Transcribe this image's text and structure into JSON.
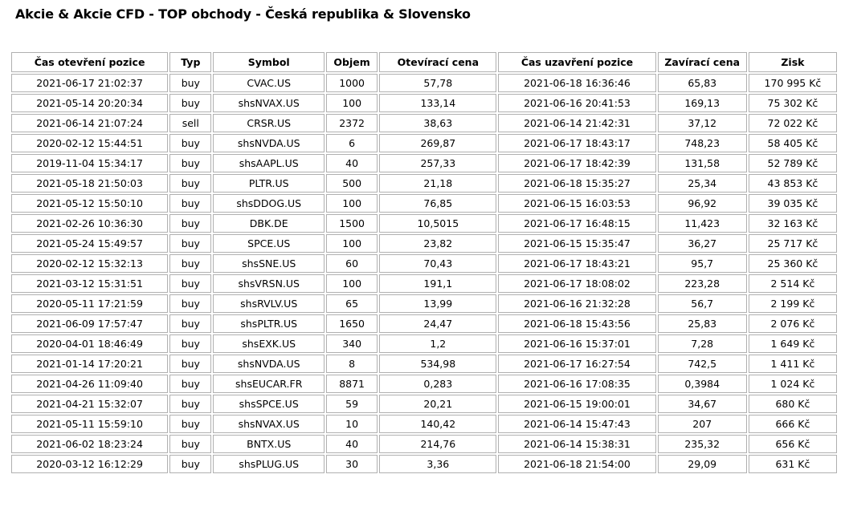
{
  "title": "Akcie & Akcie CFD - TOP obchody - Česká republika & Slovensko",
  "table": {
    "headers": [
      "Čas otevření pozice",
      "Typ",
      "Symbol",
      "Objem",
      "Otevírací cena",
      "Čas uzavření pozice",
      "Zavírací cena",
      "Zisk"
    ],
    "rows": [
      [
        "2021-06-17 21:02:37",
        "buy",
        "CVAC.US",
        "1000",
        "57,78",
        "2021-06-18 16:36:46",
        "65,83",
        "170 995 Kč"
      ],
      [
        "2021-05-14 20:20:34",
        "buy",
        "shsNVAX.US",
        "100",
        "133,14",
        "2021-06-16 20:41:53",
        "169,13",
        "75 302 Kč"
      ],
      [
        "2021-06-14 21:07:24",
        "sell",
        "CRSR.US",
        "2372",
        "38,63",
        "2021-06-14 21:42:31",
        "37,12",
        "72 022 Kč"
      ],
      [
        "2020-02-12 15:44:51",
        "buy",
        "shsNVDA.US",
        "6",
        "269,87",
        "2021-06-17 18:43:17",
        "748,23",
        "58 405 Kč"
      ],
      [
        "2019-11-04 15:34:17",
        "buy",
        "shsAAPL.US",
        "40",
        "257,33",
        "2021-06-17 18:42:39",
        "131,58",
        "52 789 Kč"
      ],
      [
        "2021-05-18 21:50:03",
        "buy",
        "PLTR.US",
        "500",
        "21,18",
        "2021-06-18 15:35:27",
        "25,34",
        "43 853 Kč"
      ],
      [
        "2021-05-12 15:50:10",
        "buy",
        "shsDDOG.US",
        "100",
        "76,85",
        "2021-06-15 16:03:53",
        "96,92",
        "39 035 Kč"
      ],
      [
        "2021-02-26 10:36:30",
        "buy",
        "DBK.DE",
        "1500",
        "10,5015",
        "2021-06-17 16:48:15",
        "11,423",
        "32 163 Kč"
      ],
      [
        "2021-05-24 15:49:57",
        "buy",
        "SPCE.US",
        "100",
        "23,82",
        "2021-06-15 15:35:47",
        "36,27",
        "25 717 Kč"
      ],
      [
        "2020-02-12 15:32:13",
        "buy",
        "shsSNE.US",
        "60",
        "70,43",
        "2021-06-17 18:43:21",
        "95,7",
        "25 360 Kč"
      ],
      [
        "2021-03-12 15:31:51",
        "buy",
        "shsVRSN.US",
        "100",
        "191,1",
        "2021-06-17 18:08:02",
        "223,28",
        "2 514 Kč"
      ],
      [
        "2020-05-11 17:21:59",
        "buy",
        "shsRVLV.US",
        "65",
        "13,99",
        "2021-06-16 21:32:28",
        "56,7",
        "2 199 Kč"
      ],
      [
        "2021-06-09 17:57:47",
        "buy",
        "shsPLTR.US",
        "1650",
        "24,47",
        "2021-06-18 15:43:56",
        "25,83",
        "2 076 Kč"
      ],
      [
        "2020-04-01 18:46:49",
        "buy",
        "shsEXK.US",
        "340",
        "1,2",
        "2021-06-16 15:37:01",
        "7,28",
        "1 649 Kč"
      ],
      [
        "2021-01-14 17:20:21",
        "buy",
        "shsNVDA.US",
        "8",
        "534,98",
        "2021-06-17 16:27:54",
        "742,5",
        "1 411 Kč"
      ],
      [
        "2021-04-26 11:09:40",
        "buy",
        "shsEUCAR.FR",
        "8871",
        "0,283",
        "2021-06-16 17:08:35",
        "0,3984",
        "1 024 Kč"
      ],
      [
        "2021-04-21 15:32:07",
        "buy",
        "shsSPCE.US",
        "59",
        "20,21",
        "2021-06-15 19:00:01",
        "34,67",
        "680 Kč"
      ],
      [
        "2021-05-11 15:59:10",
        "buy",
        "shsNVAX.US",
        "10",
        "140,42",
        "2021-06-14 15:47:43",
        "207",
        "666 Kč"
      ],
      [
        "2021-06-02 18:23:24",
        "buy",
        "BNTX.US",
        "40",
        "214,76",
        "2021-06-14 15:38:31",
        "235,32",
        "656 Kč"
      ],
      [
        "2020-03-12 16:12:29",
        "buy",
        "shsPLUG.US",
        "30",
        "3,36",
        "2021-06-18 21:54:00",
        "29,09",
        "631 Kč"
      ]
    ]
  }
}
